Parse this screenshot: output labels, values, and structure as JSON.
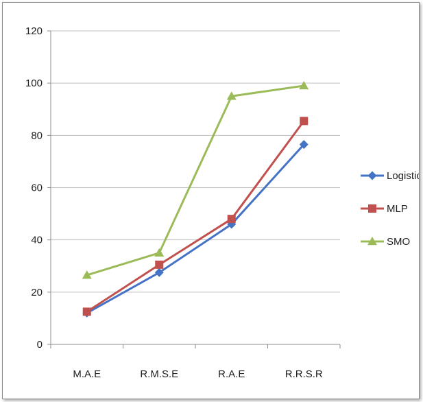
{
  "chart_data": {
    "type": "line",
    "title": "",
    "xlabel": "",
    "ylabel": "",
    "categories": [
      "M.A.E",
      "R.M.S.E",
      "R.A.E",
      "R.R.S.R"
    ],
    "ylim": [
      0,
      120
    ],
    "yticks": [
      0,
      20,
      40,
      60,
      80,
      100,
      120
    ],
    "grid": "horizontal",
    "legend_position": "right",
    "series": [
      {
        "name": "Logistic",
        "values": [
          12,
          27.5,
          46,
          76.5
        ],
        "color": "#4472c4",
        "marker": "diamond"
      },
      {
        "name": "MLP",
        "values": [
          12.5,
          30.5,
          48,
          85.5
        ],
        "color": "#c0504d",
        "marker": "square"
      },
      {
        "name": "SMO",
        "values": [
          26.5,
          35,
          95,
          99
        ],
        "color": "#9bbb59",
        "marker": "triangle"
      }
    ]
  }
}
